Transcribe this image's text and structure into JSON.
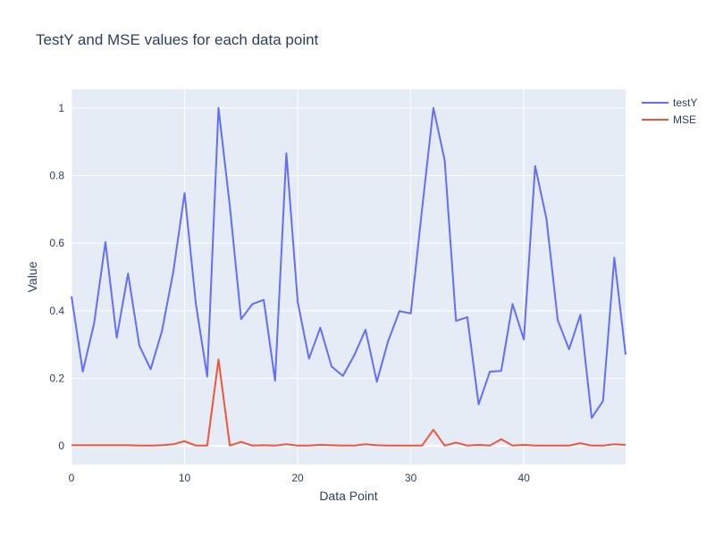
{
  "chart_data": {
    "type": "line",
    "title": "TestY and MSE values for each data point",
    "xlabel": "Data Point",
    "ylabel": "Value",
    "xlim": [
      0,
      49
    ],
    "ylim": [
      -0.055,
      1.055
    ],
    "xticks": [
      0,
      10,
      20,
      30,
      40
    ],
    "yticks": [
      0,
      0.2,
      0.4,
      0.6,
      0.8,
      1
    ],
    "ytick_labels": [
      "0",
      "0.2",
      "0.4",
      "0.6",
      "0.8",
      "1"
    ],
    "grid": true,
    "legend_position": "top-right",
    "x": [
      0,
      1,
      2,
      3,
      4,
      5,
      6,
      7,
      8,
      9,
      10,
      11,
      12,
      13,
      14,
      15,
      16,
      17,
      18,
      19,
      20,
      21,
      22,
      23,
      24,
      25,
      26,
      27,
      28,
      29,
      30,
      31,
      32,
      33,
      34,
      35,
      36,
      37,
      38,
      39,
      40,
      41,
      42,
      43,
      44,
      45,
      46,
      47,
      48,
      49
    ],
    "series": [
      {
        "name": "testY",
        "color": "#636efa",
        "values": [
          0.443,
          0.22,
          0.363,
          0.603,
          0.32,
          0.51,
          0.297,
          0.227,
          0.34,
          0.515,
          0.748,
          0.42,
          0.205,
          1.0,
          0.71,
          0.375,
          0.42,
          0.432,
          0.193,
          0.866,
          0.427,
          0.258,
          0.35,
          0.235,
          0.207,
          0.268,
          0.344,
          0.19,
          0.31,
          0.399,
          0.392,
          0.7,
          1.0,
          0.845,
          0.37,
          0.381,
          0.123,
          0.22,
          0.222,
          0.42,
          0.315,
          0.828,
          0.672,
          0.372,
          0.286,
          0.388,
          0.083,
          0.133,
          0.557,
          0.27
        ]
      },
      {
        "name": "MSE",
        "color": "#ef553b",
        "values": [
          0.002,
          0.002,
          0.002,
          0.002,
          0.002,
          0.002,
          0.001,
          0.001,
          0.002,
          0.005,
          0.014,
          0.001,
          0.001,
          0.256,
          0.001,
          0.012,
          0.001,
          0.002,
          0.001,
          0.005,
          0.001,
          0.001,
          0.003,
          0.002,
          0.001,
          0.001,
          0.005,
          0.002,
          0.001,
          0.001,
          0.001,
          0.001,
          0.048,
          0.001,
          0.01,
          0.001,
          0.003,
          0.001,
          0.02,
          0.001,
          0.003,
          0.001,
          0.001,
          0.001,
          0.001,
          0.008,
          0.001,
          0.001,
          0.005,
          0.003
        ]
      }
    ]
  }
}
